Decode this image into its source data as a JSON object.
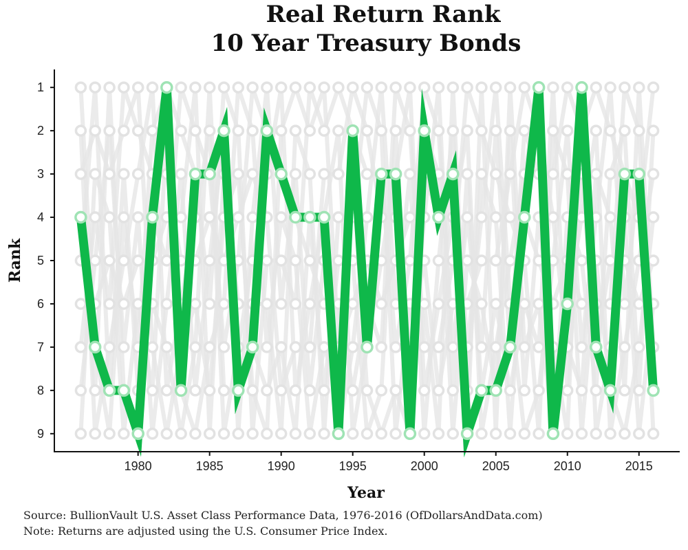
{
  "chart_data": {
    "type": "line",
    "title_lines": [
      "Real Return Rank",
      "10 Year Treasury Bonds"
    ],
    "xlabel": "Year",
    "ylabel": "Rank",
    "x": [
      1976,
      1977,
      1978,
      1979,
      1980,
      1981,
      1982,
      1983,
      1984,
      1985,
      1986,
      1987,
      1988,
      1989,
      1990,
      1991,
      1992,
      1993,
      1994,
      1995,
      1996,
      1997,
      1998,
      1999,
      2000,
      2001,
      2002,
      2003,
      2004,
      2005,
      2006,
      2007,
      2008,
      2009,
      2010,
      2011,
      2012,
      2013,
      2014,
      2015,
      2016
    ],
    "x_ticks": [
      1980,
      1985,
      1990,
      1995,
      2000,
      2005,
      2010,
      2015
    ],
    "xlim": [
      1974.2,
      2017.8
    ],
    "y_ticks": [
      1,
      2,
      3,
      4,
      5,
      6,
      7,
      8,
      9
    ],
    "ylim": [
      9.4,
      0.6
    ],
    "y_reversed": true,
    "highlight_series": {
      "color": "#0fb84a",
      "values": [
        4,
        7,
        8,
        8,
        9,
        4,
        1,
        8,
        3,
        3,
        2,
        8,
        7,
        2,
        3,
        4,
        4,
        4,
        9,
        2,
        7,
        3,
        3,
        9,
        2,
        4,
        3,
        9,
        8,
        8,
        7,
        4,
        1,
        9,
        6,
        1,
        7,
        8,
        3,
        3,
        8
      ]
    },
    "background_series_color": "#e6e6e6",
    "background_rank_count": 9,
    "grid": false
  },
  "footer": {
    "source": "Source:  BullionVault U.S. Asset Class Performance Data, 1976-2016 (OfDollarsAndData.com)",
    "note": "Note:  Returns are adjusted using the U.S. Consumer Price Index."
  }
}
